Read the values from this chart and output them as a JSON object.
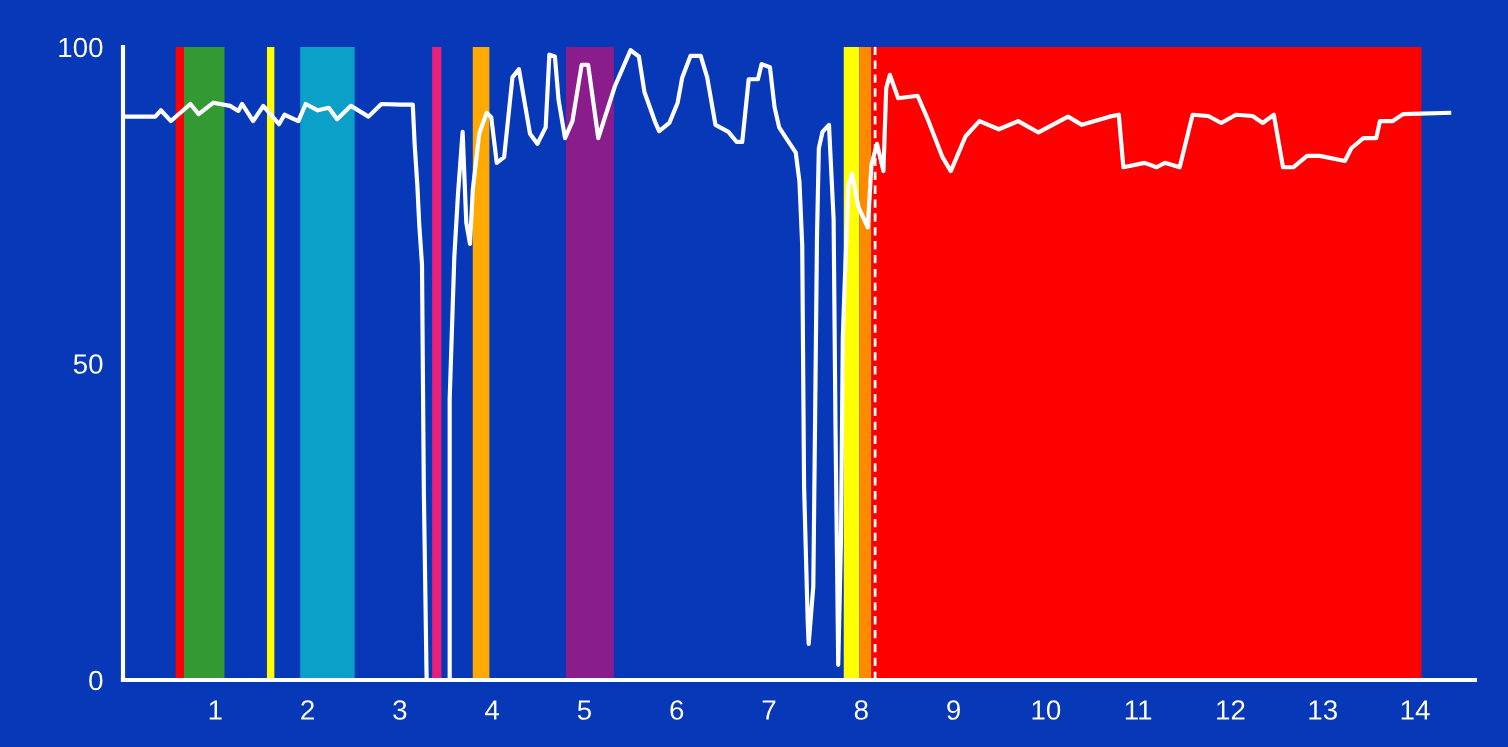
{
  "chart_data": {
    "type": "line",
    "x": [
      0.0,
      0.35,
      0.41,
      0.52,
      0.73,
      0.82,
      0.98,
      1.16,
      1.25,
      1.29,
      1.41,
      1.52,
      1.69,
      1.75,
      1.9,
      1.98,
      2.11,
      2.23,
      2.32,
      2.47,
      2.66,
      2.8,
      3.01,
      3.14,
      3.16,
      3.19,
      3.21,
      3.24,
      3.26,
      3.29,
      3.54,
      3.54,
      3.59,
      3.63,
      3.68,
      3.72,
      3.76,
      3.79,
      3.86,
      3.94,
      3.99,
      4.05,
      4.13,
      4.22,
      4.29,
      4.41,
      4.49,
      4.58,
      4.62,
      4.68,
      4.72,
      4.79,
      4.87,
      4.97,
      5.04,
      5.15,
      5.33,
      5.5,
      5.59,
      5.65,
      5.77,
      5.81,
      5.92,
      6.01,
      6.06,
      6.15,
      6.26,
      6.33,
      6.42,
      6.56,
      6.65,
      6.71,
      6.78,
      6.88,
      6.92,
      7.01,
      7.06,
      7.11,
      7.2,
      7.29,
      7.33,
      7.36,
      7.38,
      7.42,
      7.43,
      7.48,
      7.5,
      7.52,
      7.54,
      7.58,
      7.65,
      7.7,
      7.72,
      7.75,
      7.78,
      7.8,
      7.82,
      7.86,
      7.9,
      7.97,
      8.07,
      8.11,
      8.17,
      8.24,
      8.27,
      8.31,
      8.4,
      8.61,
      8.72,
      8.88,
      8.97,
      9.13,
      9.28,
      9.49,
      9.7,
      9.92,
      10.24,
      10.39,
      10.69,
      10.79,
      10.84,
      11.07,
      11.2,
      11.29,
      11.45,
      11.59,
      11.76,
      11.9,
      12.06,
      12.24,
      12.35,
      12.47,
      12.57,
      12.68,
      12.83,
      12.97,
      13.24,
      13.31,
      13.44,
      13.58,
      13.62,
      13.76,
      13.87,
      14.37
    ],
    "series": [
      {
        "color": "#ffffff",
        "values": [
          89,
          89,
          90,
          88.3,
          91,
          89.4,
          91.2,
          90.7,
          89.9,
          91,
          88.3,
          90.7,
          87.8,
          89.3,
          88.3,
          91,
          90,
          90.4,
          88.6,
          90.7,
          89,
          91,
          90.9,
          90.9,
          84.7,
          78,
          72,
          65.6,
          29.7,
          0,
          0,
          44.5,
          66.8,
          76.8,
          86.6,
          72.2,
          68.9,
          77.4,
          86.3,
          89.6,
          88.9,
          81.7,
          82.6,
          95.2,
          96.5,
          86.3,
          84.7,
          87.3,
          98.8,
          98.5,
          91.6,
          85.6,
          88.3,
          97.2,
          97.2,
          85.6,
          93.8,
          99.5,
          98.5,
          92.9,
          88,
          86.7,
          88,
          91.2,
          95.2,
          98.6,
          98.6,
          95.2,
          87.7,
          86.6,
          85,
          85,
          94.9,
          94.9,
          97.3,
          96.8,
          90.5,
          87.3,
          85.3,
          83.3,
          78.7,
          68.6,
          30.6,
          9,
          5.7,
          14.8,
          41.9,
          70.1,
          84,
          86.6,
          87.7,
          72.8,
          40.6,
          2.4,
          22.4,
          54.3,
          62.6,
          78,
          80,
          74.7,
          71.5,
          81.4,
          84.7,
          80.4,
          93.5,
          95.6,
          91.9,
          92.3,
          88.6,
          82.6,
          80.4,
          85.9,
          88.3,
          87,
          88.3,
          86.5,
          89,
          87.7,
          89,
          89.3,
          81,
          81.7,
          81,
          81.7,
          81,
          89.3,
          89.1,
          88,
          89.3,
          89.1,
          88,
          89.3,
          81,
          81,
          82.8,
          82.8,
          82,
          84,
          85.6,
          85.6,
          88.3,
          88.3,
          89.4,
          89.6
        ]
      }
    ],
    "xlim": [
      0,
      14.65
    ],
    "xticks": [
      1,
      2,
      3,
      4,
      5,
      6,
      7,
      8,
      9,
      10,
      11,
      12,
      13,
      14
    ],
    "ylim": [
      0,
      100
    ],
    "yticks": [
      0,
      50,
      100
    ],
    "grid": false,
    "marker": "none",
    "line_style": "solid",
    "bands": [
      {
        "axis": "x",
        "from": 0.57,
        "to": 0.66,
        "color": "#ff0000"
      },
      {
        "axis": "x",
        "from": 0.66,
        "to": 1.1,
        "color": "#339933"
      },
      {
        "axis": "x",
        "from": 1.56,
        "to": 1.64,
        "color": "#ffff00"
      },
      {
        "axis": "x",
        "from": 1.92,
        "to": 2.51,
        "color": "#0aa0c8"
      },
      {
        "axis": "x",
        "from": 3.35,
        "to": 3.45,
        "color": "#e8207a"
      },
      {
        "axis": "x",
        "from": 3.79,
        "to": 3.97,
        "color": "#ffaa00"
      },
      {
        "axis": "x",
        "from": 4.8,
        "to": 5.32,
        "color": "#8a1c8c"
      },
      {
        "axis": "x",
        "from": 7.81,
        "to": 7.98,
        "color": "#ffff00"
      },
      {
        "axis": "x",
        "from": 7.98,
        "to": 8.11,
        "color": "#ff8a00"
      },
      {
        "axis": "x",
        "from": 8.11,
        "to": 14.07,
        "color": "#ff0000"
      }
    ],
    "ref_lines": [
      {
        "axis": "x",
        "value": 8.15,
        "color": "#ffffff",
        "line_style": "dashed"
      }
    ]
  }
}
